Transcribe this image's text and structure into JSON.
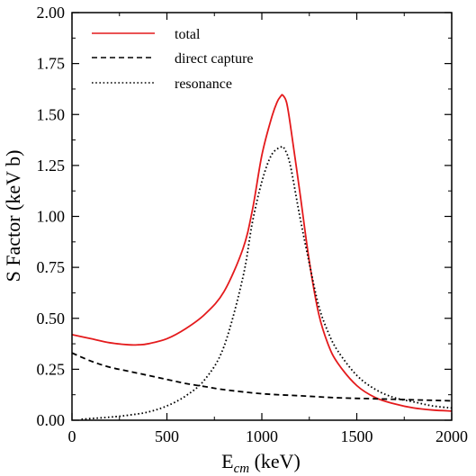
{
  "chart_data": {
    "type": "line",
    "xlabel_main": "E",
    "xlabel_sub": "cm",
    "xlabel_unit": " (keV)",
    "ylabel": "S Factor (keV b)",
    "xlim": [
      0,
      2000
    ],
    "ylim": [
      0,
      2.0
    ],
    "x_ticks": [
      0,
      500,
      1000,
      1500,
      2000
    ],
    "x_tick_labels": [
      "0",
      "500",
      "1000",
      "1500",
      "2000"
    ],
    "y_ticks": [
      0,
      0.25,
      0.5,
      0.75,
      1.0,
      1.25,
      1.5,
      1.75,
      2.0
    ],
    "y_tick_labels": [
      "0.00",
      "0.25",
      "0.50",
      "0.75",
      "1.00",
      "1.25",
      "1.50",
      "1.75",
      "2.00"
    ],
    "grid": false,
    "legend_position": "top-left",
    "series": [
      {
        "name": "total",
        "color": "#e41a1c",
        "dash": "solid",
        "x": [
          0,
          100,
          200,
          300,
          350,
          400,
          500,
          600,
          700,
          800,
          900,
          950,
          1000,
          1050,
          1080,
          1100,
          1110,
          1130,
          1150,
          1200,
          1250,
          1300,
          1350,
          1400,
          1500,
          1600,
          1700,
          1800,
          1900,
          2000
        ],
        "y": [
          0.42,
          0.4,
          0.38,
          0.37,
          0.37,
          0.375,
          0.4,
          0.45,
          0.52,
          0.63,
          0.84,
          1.03,
          1.3,
          1.48,
          1.56,
          1.59,
          1.595,
          1.56,
          1.45,
          1.12,
          0.78,
          0.52,
          0.37,
          0.28,
          0.17,
          0.11,
          0.08,
          0.06,
          0.05,
          0.045
        ]
      },
      {
        "name": "direct capture",
        "color": "#000000",
        "dash": "dashed",
        "x": [
          0,
          100,
          200,
          300,
          400,
          500,
          600,
          700,
          800,
          1000,
          1200,
          1400,
          1600,
          1800,
          2000
        ],
        "y": [
          0.33,
          0.29,
          0.26,
          0.24,
          0.22,
          0.2,
          0.18,
          0.165,
          0.15,
          0.13,
          0.12,
          0.11,
          0.105,
          0.1,
          0.095
        ]
      },
      {
        "name": "resonance",
        "color": "#000000",
        "dash": "dotted",
        "x": [
          50,
          200,
          300,
          400,
          500,
          600,
          700,
          800,
          900,
          950,
          1000,
          1050,
          1100,
          1120,
          1150,
          1200,
          1250,
          1300,
          1350,
          1400,
          1500,
          1600,
          1700,
          1800,
          1900,
          2000
        ],
        "y": [
          0.005,
          0.015,
          0.025,
          0.04,
          0.07,
          0.12,
          0.2,
          0.36,
          0.7,
          0.97,
          1.17,
          1.3,
          1.34,
          1.33,
          1.25,
          1.0,
          0.77,
          0.56,
          0.43,
          0.34,
          0.22,
          0.15,
          0.11,
          0.09,
          0.07,
          0.06
        ]
      }
    ]
  }
}
